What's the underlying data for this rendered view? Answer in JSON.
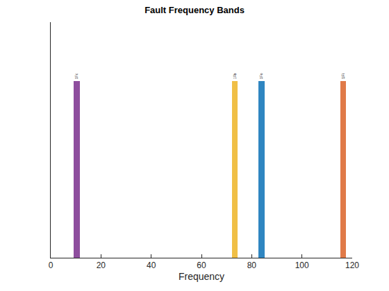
{
  "chart_data": {
    "type": "bar",
    "title": "Fault Frequency Bands",
    "xlabel": "Frequency",
    "categories": [
      "1Fc",
      "1Fb",
      "1Fo",
      "1Fi"
    ],
    "bands": [
      [
        9.2,
        11.5
      ],
      [
        72.2,
        74.5
      ],
      [
        82.8,
        85.2
      ],
      [
        115.2,
        117.5
      ]
    ],
    "values": [
      0.75,
      0.75,
      0.75,
      0.75
    ],
    "colors": [
      "#8e4e9e",
      "#f0bf46",
      "#2f86c1",
      "#e07a48"
    ],
    "xlim": [
      0,
      120
    ],
    "xticks": [
      0,
      20,
      40,
      60,
      80,
      100,
      120
    ],
    "ylim": [
      0,
      1
    ],
    "tick_labels": "x",
    "grid": false
  }
}
